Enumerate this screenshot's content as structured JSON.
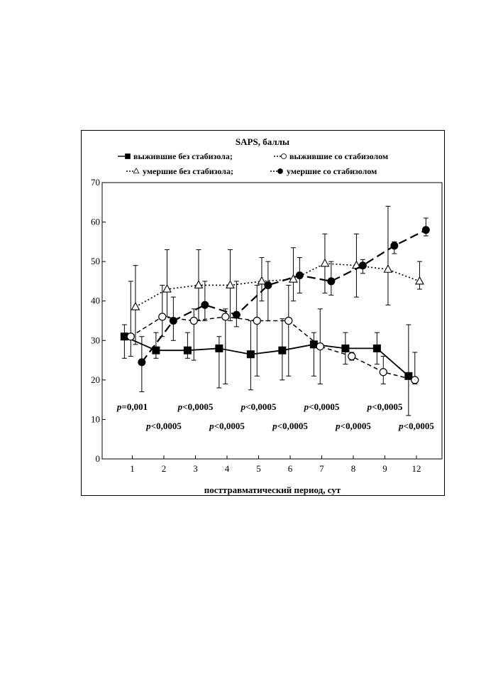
{
  "chart_data": {
    "type": "line",
    "title": "SAPS, баллы",
    "xlabel": "посттравматический период, сут",
    "ylabel": "",
    "categories": [
      "1",
      "2",
      "3",
      "4",
      "5",
      "6",
      "7",
      "8",
      "9",
      "12"
    ],
    "ylim": [
      0,
      70
    ],
    "yticks": [
      0,
      10,
      20,
      30,
      40,
      50,
      60,
      70
    ],
    "grid": false,
    "legend": [
      {
        "text": "выжившие без стабизола;",
        "marker": "square-filled"
      },
      {
        "text": "выжившие со стабизолом",
        "marker": "circle-open"
      },
      {
        "text": "умершие без стабизола;",
        "marker": "triangle-open"
      },
      {
        "text": "умершие со стабизолом",
        "marker": "circle-filled"
      }
    ],
    "series": [
      {
        "name": "выжившие без стабизола",
        "marker": "square-filled",
        "line": "solid",
        "offset": -0.25,
        "values": [
          31,
          27.5,
          27.5,
          28,
          26.5,
          27.5,
          29,
          28,
          28,
          21
        ],
        "err_low": [
          25.5,
          25.5,
          25.5,
          18,
          17.5,
          20,
          21,
          24,
          24,
          11
        ],
        "err_high": [
          34,
          32,
          32,
          31,
          35,
          35.5,
          32,
          32,
          32,
          34
        ]
      },
      {
        "name": "выжившие со стабизолом",
        "marker": "circle-open",
        "line": "dashed",
        "offset": -0.05,
        "values": [
          31,
          36,
          35,
          36,
          35,
          35,
          28.5,
          26,
          22,
          20
        ],
        "err_low": [
          26,
          31,
          25,
          19,
          21,
          21,
          19,
          25,
          19,
          19
        ],
        "err_high": [
          45,
          44,
          38,
          38,
          44,
          44,
          38,
          27,
          26,
          27
        ]
      },
      {
        "name": "умершие без стабизола",
        "marker": "triangle-open",
        "line": "dotted",
        "offset": 0.1,
        "values": [
          38.5,
          43,
          44,
          44,
          45,
          45.5,
          49.5,
          49,
          48,
          45
        ],
        "err_low": [
          29,
          36,
          35,
          35,
          40,
          40,
          42,
          41,
          39,
          43
        ],
        "err_high": [
          49,
          53,
          53,
          53,
          51,
          53.5,
          57,
          57,
          64,
          50
        ]
      },
      {
        "name": "умершие со стабизолом",
        "marker": "circle-filled",
        "line": "longdash",
        "offset": 0.3,
        "values": [
          24.5,
          35,
          39,
          36.5,
          44,
          46.5,
          45,
          49,
          54,
          58
        ],
        "err_low": [
          17,
          30,
          35,
          33.5,
          35,
          42,
          41.5,
          47,
          52,
          56.5
        ],
        "err_high": [
          31,
          41,
          45,
          45,
          50,
          51,
          50,
          50.5,
          55,
          61
        ]
      }
    ],
    "annotations": [
      {
        "text": "p=0,001",
        "x": 1,
        "row": "upper"
      },
      {
        "text": "p<0,0005",
        "x": 2,
        "row": "lower"
      },
      {
        "text": "p<0,0005",
        "x": 3,
        "row": "upper"
      },
      {
        "text": "p<0,0005",
        "x": 4,
        "row": "lower"
      },
      {
        "text": "p<0,0005",
        "x": 5,
        "row": "upper"
      },
      {
        "text": "p<0,0005",
        "x": 6,
        "row": "lower"
      },
      {
        "text": "p<0,0005",
        "x": 7,
        "row": "upper"
      },
      {
        "text": "p<0,0005",
        "x": 8,
        "row": "lower"
      },
      {
        "text": "p<0,0005",
        "x": 9,
        "row": "upper"
      },
      {
        "text": "p<0,0005",
        "x": 12,
        "row": "lower"
      }
    ]
  }
}
